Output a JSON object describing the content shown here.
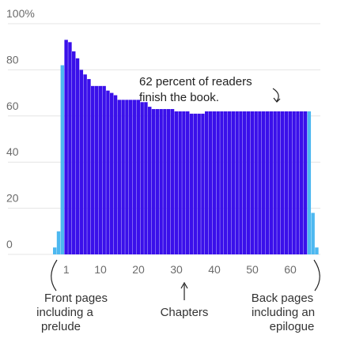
{
  "chart_data": {
    "type": "bar",
    "title": "",
    "xlabel": "",
    "ylabel": "",
    "ylim": [
      0,
      100
    ],
    "y_ticks": [
      "100%",
      "80",
      "60",
      "40",
      "20",
      "0"
    ],
    "x_ticks": [
      "1",
      "10",
      "20",
      "30",
      "40",
      "50",
      "60"
    ],
    "grid": true,
    "series": [
      {
        "name": "Front pages",
        "color": "#4db8f0",
        "values": [
          3,
          10,
          82
        ]
      },
      {
        "name": "Chapters",
        "color": "#3a10ea",
        "values": [
          93,
          92,
          88,
          85,
          80,
          78,
          76,
          73,
          73,
          73,
          73,
          71,
          70,
          69,
          67,
          67,
          67,
          67,
          67,
          67,
          66,
          66,
          64,
          63,
          63,
          63,
          63,
          63,
          63,
          62,
          62,
          62,
          62,
          61,
          61,
          61,
          61,
          62,
          62,
          62,
          62,
          62,
          62,
          62,
          62,
          62,
          62,
          62,
          62,
          62,
          62,
          62,
          62,
          62,
          62,
          62,
          62,
          62,
          62,
          62,
          62,
          62,
          62,
          62
        ]
      },
      {
        "name": "Back pages",
        "color": "#4db8f0",
        "values": [
          62,
          18,
          3
        ]
      }
    ]
  },
  "annotation": {
    "line1": "62 percent of readers",
    "line2": "finish the book."
  },
  "captions": {
    "front": [
      "Front pages",
      "including a",
      "prelude"
    ],
    "chapters": "Chapters",
    "back": [
      "Back pages",
      "including an",
      "epilogue"
    ]
  }
}
